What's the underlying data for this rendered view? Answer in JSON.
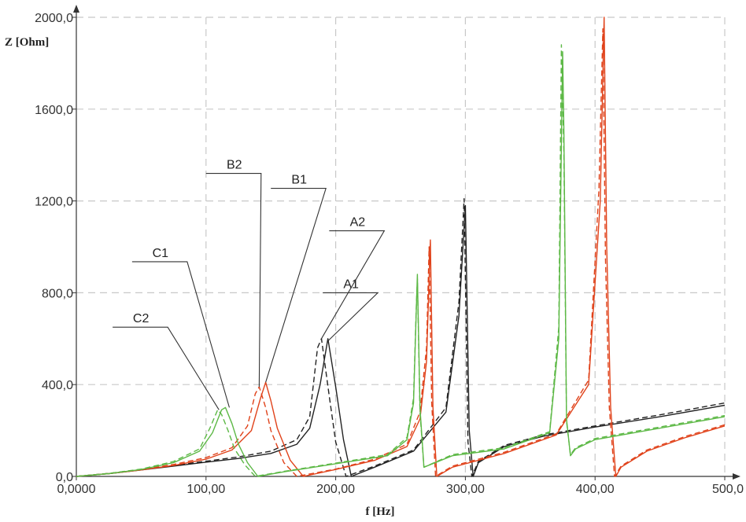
{
  "chart_data": {
    "type": "line",
    "title": "",
    "xlabel": "f [Hz]",
    "ylabel": "Z [Ohm]",
    "xlim": [
      0,
      500
    ],
    "ylim": [
      0,
      2000
    ],
    "x_ticks": [
      0,
      100,
      200,
      300,
      400,
      500
    ],
    "x_tick_labels": [
      "0,0000",
      "100,00",
      "200,00",
      "300,00",
      "400,00",
      "500,0"
    ],
    "y_ticks": [
      0,
      400,
      800,
      1200,
      1600,
      2000
    ],
    "y_tick_labels": [
      "0,0",
      "400,0",
      "800,0",
      "1200,0",
      "1600,0",
      "2000,0"
    ],
    "grid": true,
    "colors": {
      "A": "#222222",
      "B": "#e0421a",
      "C": "#5cb845",
      "grid": "#c8c8c8",
      "axis": "#333333"
    },
    "series": [
      {
        "name": "A1",
        "color": "#222222",
        "style": "solid",
        "x": [
          0,
          25,
          50,
          75,
          100,
          125,
          150,
          170,
          180,
          188,
          194,
          200,
          206,
          212,
          230,
          260,
          285,
          295,
          300,
          303,
          306,
          310,
          330,
          360,
          400,
          450,
          500
        ],
        "y": [
          0,
          12,
          28,
          45,
          62,
          78,
          100,
          140,
          210,
          400,
          600,
          390,
          160,
          0,
          40,
          110,
          280,
          700,
          1180,
          200,
          0,
          60,
          130,
          175,
          215,
          260,
          310
        ]
      },
      {
        "name": "A2",
        "color": "#222222",
        "style": "dashed",
        "x": [
          0,
          25,
          50,
          75,
          100,
          125,
          150,
          170,
          180,
          186,
          189,
          195,
          200,
          208,
          230,
          260,
          285,
          295,
          299,
          302,
          305,
          310,
          330,
          360,
          400,
          450,
          500
        ],
        "y": [
          0,
          13,
          30,
          48,
          66,
          85,
          110,
          160,
          260,
          560,
          600,
          350,
          150,
          0,
          45,
          115,
          300,
          760,
          1210,
          150,
          0,
          65,
          135,
          180,
          220,
          268,
          320
        ]
      },
      {
        "name": "B1",
        "color": "#e0421a",
        "style": "solid",
        "x": [
          0,
          25,
          50,
          75,
          100,
          120,
          135,
          142,
          146,
          150,
          155,
          165,
          175,
          200,
          230,
          255,
          265,
          270,
          273,
          275,
          278,
          290,
          330,
          370,
          395,
          404,
          407,
          409,
          412,
          416,
          420,
          440,
          470,
          500
        ],
        "y": [
          0,
          12,
          28,
          48,
          75,
          115,
          200,
          340,
          410,
          330,
          210,
          70,
          0,
          30,
          70,
          130,
          250,
          500,
          1030,
          300,
          0,
          40,
          100,
          180,
          400,
          1200,
          2000,
          1000,
          300,
          0,
          40,
          110,
          170,
          220
        ]
      },
      {
        "name": "B2",
        "color": "#e0421a",
        "style": "dashed",
        "x": [
          0,
          25,
          50,
          75,
          100,
          120,
          132,
          138,
          141,
          146,
          150,
          160,
          170,
          200,
          230,
          255,
          265,
          270,
          272,
          274,
          277,
          290,
          330,
          370,
          395,
          403,
          406,
          408,
          411,
          415,
          420,
          440,
          470,
          500
        ],
        "y": [
          0,
          13,
          30,
          52,
          82,
          125,
          220,
          360,
          390,
          300,
          200,
          60,
          0,
          32,
          75,
          140,
          280,
          560,
          1000,
          320,
          0,
          45,
          105,
          185,
          420,
          1250,
          1950,
          950,
          300,
          0,
          45,
          115,
          175,
          225
        ]
      },
      {
        "name": "C1",
        "color": "#5cb845",
        "style": "solid",
        "x": [
          0,
          25,
          50,
          75,
          95,
          105,
          112,
          115,
          120,
          125,
          132,
          140,
          160,
          200,
          240,
          255,
          260,
          262,
          263,
          265,
          268,
          290,
          330,
          365,
          372,
          375,
          376,
          378,
          381,
          385,
          400,
          440,
          500
        ],
        "y": [
          0,
          12,
          30,
          60,
          110,
          190,
          290,
          300,
          230,
          140,
          60,
          0,
          20,
          55,
          90,
          160,
          320,
          700,
          880,
          300,
          40,
          90,
          120,
          190,
          600,
          1850,
          1500,
          250,
          90,
          120,
          160,
          200,
          260
        ]
      },
      {
        "name": "C2",
        "color": "#5cb845",
        "style": "dashed",
        "x": [
          0,
          25,
          50,
          75,
          95,
          103,
          109,
          112,
          117,
          122,
          130,
          138,
          160,
          200,
          240,
          255,
          260,
          262,
          263,
          265,
          268,
          290,
          330,
          365,
          372,
          374,
          376,
          378,
          381,
          385,
          400,
          440,
          500
        ],
        "y": [
          0,
          13,
          32,
          65,
          120,
          210,
          290,
          270,
          200,
          120,
          50,
          0,
          22,
          58,
          95,
          170,
          340,
          720,
          860,
          280,
          40,
          95,
          125,
          195,
          650,
          1880,
          1400,
          240,
          95,
          125,
          165,
          205,
          265
        ]
      }
    ],
    "callouts": [
      {
        "label": "C2",
        "anchor": [
          110,
          290
        ],
        "text_x": 28,
        "text_y": 650
      },
      {
        "label": "C1",
        "anchor": [
          118,
          300
        ],
        "text_x": 43,
        "text_y": 935
      },
      {
        "label": "B2",
        "anchor": [
          141,
          390
        ],
        "text_x": 100,
        "text_y": 1320
      },
      {
        "label": "B1",
        "anchor": [
          146,
          410
        ],
        "text_x": 150,
        "text_y": 1255
      },
      {
        "label": "A2",
        "anchor": [
          189,
          600
        ],
        "text_x": 195,
        "text_y": 1070
      },
      {
        "label": "A1",
        "anchor": [
          194,
          590
        ],
        "text_x": 190,
        "text_y": 800
      }
    ]
  }
}
